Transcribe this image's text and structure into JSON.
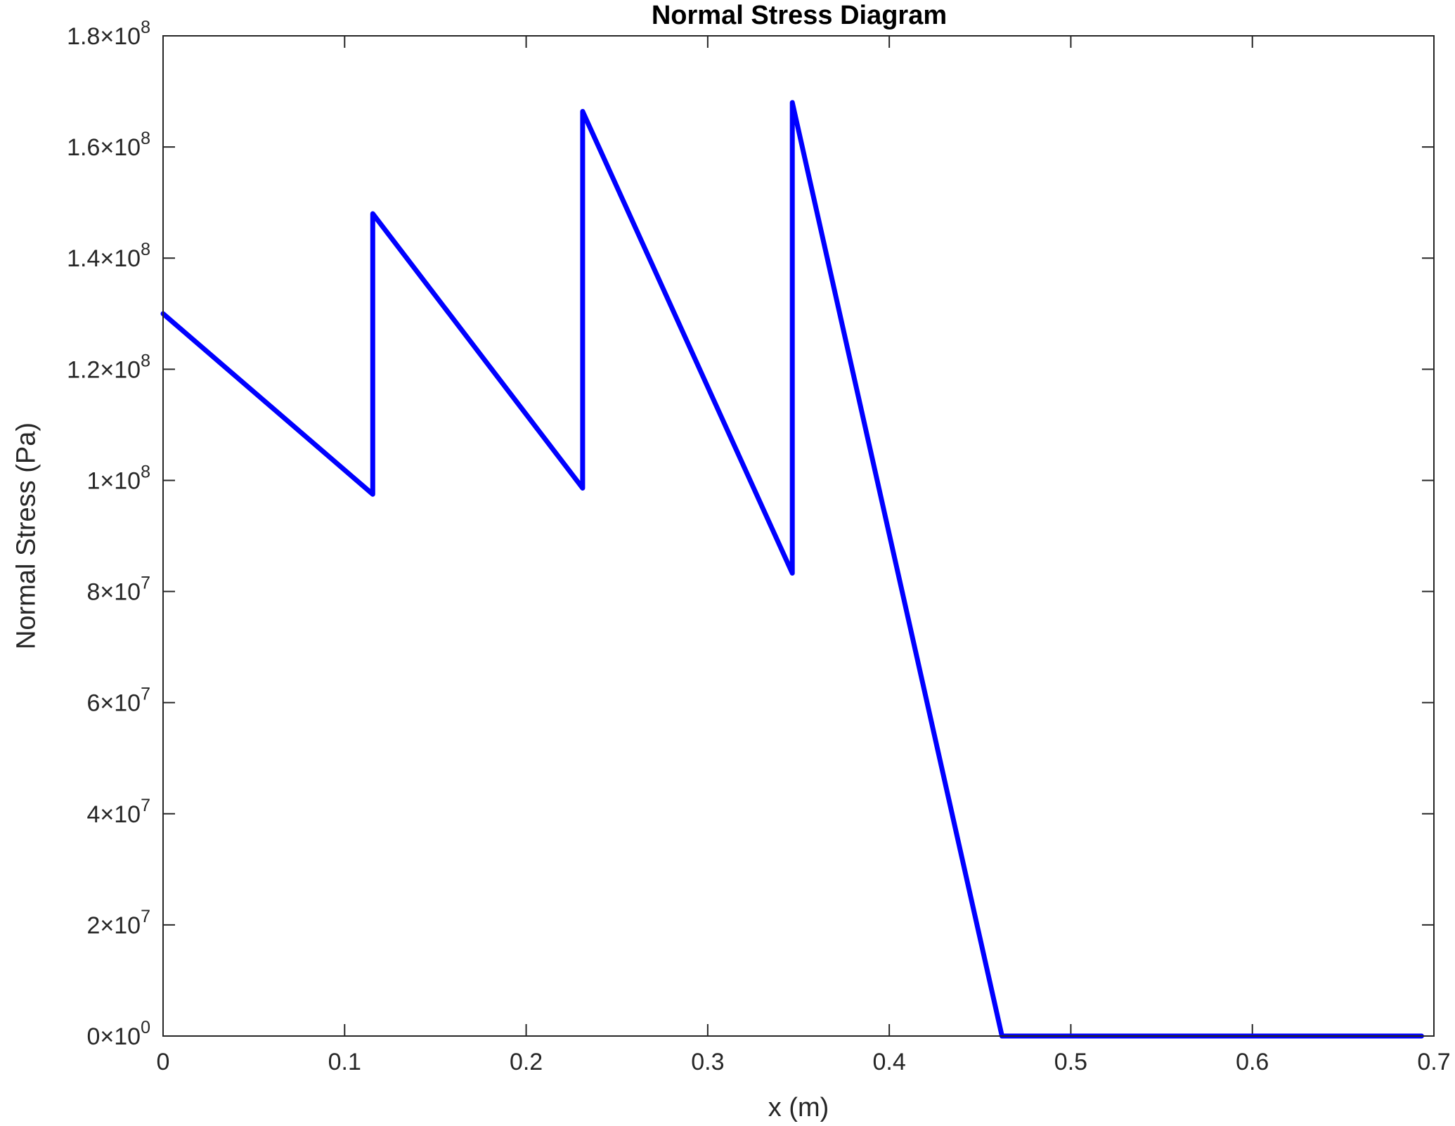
{
  "chart_data": {
    "type": "line",
    "title": "Normal Stress Diagram",
    "xlabel": "x (m)",
    "ylabel": "Normal Stress (Pa)",
    "xlim": [
      0,
      0.7
    ],
    "ylim": [
      0,
      180000000
    ],
    "x_ticks": [
      0,
      0.1,
      0.2,
      0.3,
      0.4,
      0.5,
      0.6,
      0.7
    ],
    "x_tick_labels": [
      "0",
      "0.1",
      "0.2",
      "0.3",
      "0.4",
      "0.5",
      "0.6",
      "0.7"
    ],
    "y_ticks": [
      {
        "value": 0,
        "mantissa": "0",
        "exponent": "0"
      },
      {
        "value": 20000000,
        "mantissa": "2",
        "exponent": "7"
      },
      {
        "value": 40000000,
        "mantissa": "4",
        "exponent": "7"
      },
      {
        "value": 60000000,
        "mantissa": "6",
        "exponent": "7"
      },
      {
        "value": 80000000,
        "mantissa": "8",
        "exponent": "7"
      },
      {
        "value": 100000000,
        "mantissa": "1",
        "exponent": "8"
      },
      {
        "value": 120000000,
        "mantissa": "1.2",
        "exponent": "8"
      },
      {
        "value": 140000000,
        "mantissa": "1.4",
        "exponent": "8"
      },
      {
        "value": 160000000,
        "mantissa": "1.6",
        "exponent": "8"
      },
      {
        "value": 180000000,
        "mantissa": "1.8",
        "exponent": "8"
      }
    ],
    "grid": false,
    "series": [
      {
        "color": "#0000ff",
        "x": [
          0,
          0.1155,
          0.1155,
          0.2311,
          0.2311,
          0.3466,
          0.3466,
          0.4621,
          0.4621,
          0.6932
        ],
        "y": [
          130000000,
          97500000,
          148000000,
          98600000,
          166400000,
          83300000,
          168000000,
          0,
          0,
          0
        ]
      }
    ]
  }
}
